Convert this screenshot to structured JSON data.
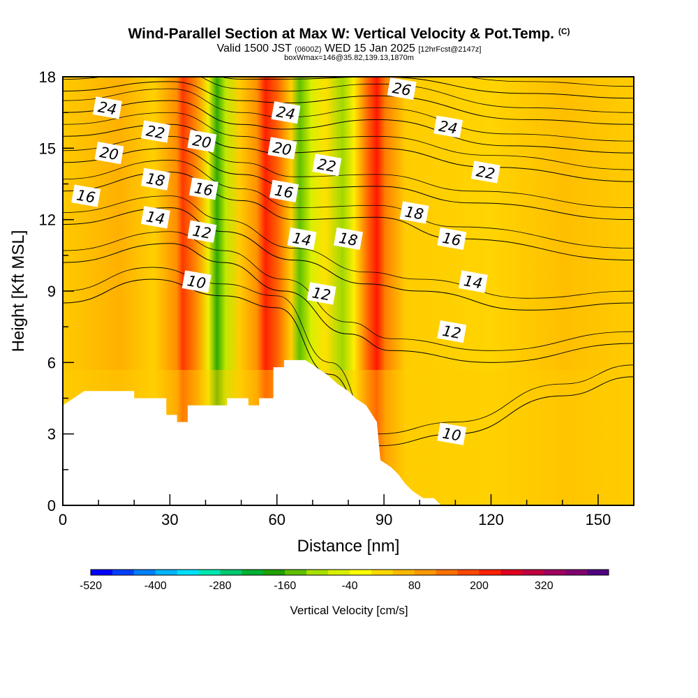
{
  "chart": {
    "title": "Wind-Parallel Section at Max W: Vertical Velocity & Pot.Temp.",
    "copyright": "(C)",
    "subtitle_a": "Valid 1500 JST",
    "subtitle_b": "(0600Z)",
    "subtitle_c": "WED 15 Jan 2025",
    "subtitle_d": "[12hrFcst@2147z]",
    "subtitle_line3": "boxWmax=146@35.82,139.13,1870m",
    "xlabel": "Distance [nm]",
    "ylabel": "Height [Kft MSL]",
    "colorbar_label": "Vertical Velocity [cm/s]"
  },
  "chart_data": {
    "type": "heatmap",
    "x_ticks": [
      "0",
      "30",
      "60",
      "90",
      "120",
      "150"
    ],
    "y_ticks": [
      "0",
      "3",
      "6",
      "9",
      "12",
      "15",
      "18"
    ],
    "xlim": [
      0,
      160
    ],
    "ylim": [
      0,
      18
    ],
    "colorbar": {
      "labels": [
        "-520",
        "-400",
        "-280",
        "-160",
        "-40",
        "80",
        "200",
        "320"
      ],
      "colors": [
        "#0000ff",
        "#0040ff",
        "#0080ff",
        "#00b4ff",
        "#00e0ff",
        "#00e8b0",
        "#00c870",
        "#00b030",
        "#20a000",
        "#60c000",
        "#a8e000",
        "#d8f000",
        "#ffff00",
        "#ffd800",
        "#ffb800",
        "#ff9800",
        "#ff7000",
        "#ff4800",
        "#ff2000",
        "#e00020",
        "#c00040",
        "#a00060",
        "#800070",
        "#500080"
      ]
    },
    "velocity_bands": [
      {
        "x_center": 33,
        "velocity": 120,
        "kind": "updraft"
      },
      {
        "x_center": 43,
        "velocity": -150,
        "kind": "downdraft"
      },
      {
        "x_center": 57,
        "velocity": 220,
        "kind": "updraft"
      },
      {
        "x_center": 67,
        "velocity": -140,
        "kind": "downdraft"
      },
      {
        "x_center": 78,
        "velocity": -80,
        "kind": "downdraft"
      },
      {
        "x_center": 88,
        "velocity": 230,
        "kind": "updraft"
      }
    ],
    "terrain_kft": [
      {
        "x": 0,
        "h": 4.2
      },
      {
        "x": 3,
        "h": 4.5
      },
      {
        "x": 6,
        "h": 4.8
      },
      {
        "x": 20,
        "h": 4.8
      },
      {
        "x": 20,
        "h": 4.5
      },
      {
        "x": 29,
        "h": 4.5
      },
      {
        "x": 29,
        "h": 3.8
      },
      {
        "x": 32,
        "h": 3.8
      },
      {
        "x": 32,
        "h": 3.5
      },
      {
        "x": 35,
        "h": 3.5
      },
      {
        "x": 35,
        "h": 4.2
      },
      {
        "x": 46,
        "h": 4.2
      },
      {
        "x": 46,
        "h": 4.5
      },
      {
        "x": 52,
        "h": 4.5
      },
      {
        "x": 52,
        "h": 4.2
      },
      {
        "x": 55,
        "h": 4.2
      },
      {
        "x": 55,
        "h": 4.5
      },
      {
        "x": 59,
        "h": 4.5
      },
      {
        "x": 59,
        "h": 5.8
      },
      {
        "x": 62,
        "h": 5.8
      },
      {
        "x": 62,
        "h": 6.1
      },
      {
        "x": 68,
        "h": 6.1
      },
      {
        "x": 71,
        "h": 5.8
      },
      {
        "x": 74,
        "h": 5.5
      },
      {
        "x": 77,
        "h": 5.1
      },
      {
        "x": 80,
        "h": 4.8
      },
      {
        "x": 82,
        "h": 4.5
      },
      {
        "x": 85,
        "h": 4.2
      },
      {
        "x": 88,
        "h": 3.5
      },
      {
        "x": 89,
        "h": 1.9
      },
      {
        "x": 92,
        "h": 1.6
      },
      {
        "x": 94,
        "h": 1.3
      },
      {
        "x": 96,
        "h": 0.9
      },
      {
        "x": 98,
        "h": 0.6
      },
      {
        "x": 101,
        "h": 0.3
      },
      {
        "x": 104,
        "h": 0.3
      },
      {
        "x": 106,
        "h": 0.0
      },
      {
        "x": 160,
        "h": 0.0
      }
    ],
    "isentropes": [
      {
        "label": "10",
        "points": [
          [
            0,
            8.5
          ],
          [
            25,
            9.5
          ],
          [
            45,
            8.8
          ],
          [
            60,
            8.3
          ],
          [
            75,
            5.5
          ],
          [
            88,
            2.5
          ],
          [
            110,
            3.0
          ],
          [
            140,
            4.6
          ],
          [
            160,
            5.4
          ]
        ]
      },
      {
        "label": "12",
        "points": [
          [
            0,
            10.2
          ],
          [
            30,
            11.0
          ],
          [
            45,
            10.2
          ],
          [
            62,
            9.0
          ],
          [
            80,
            7.2
          ],
          [
            92,
            6.5
          ],
          [
            120,
            6.0
          ],
          [
            160,
            6.8
          ]
        ]
      },
      {
        "label": "14",
        "points": [
          [
            0,
            11.8
          ],
          [
            30,
            12.5
          ],
          [
            45,
            11.5
          ],
          [
            65,
            10.3
          ],
          [
            85,
            9.3
          ],
          [
            100,
            9.0
          ],
          [
            130,
            8.2
          ],
          [
            160,
            8.5
          ]
        ]
      },
      {
        "label": "16",
        "points": [
          [
            0,
            13.2
          ],
          [
            30,
            14.0
          ],
          [
            50,
            12.8
          ],
          [
            65,
            12.0
          ],
          [
            88,
            12.1
          ],
          [
            110,
            11.2
          ],
          [
            160,
            10.3
          ]
        ]
      },
      {
        "label": "18",
        "points": [
          [
            0,
            14.4
          ],
          [
            30,
            15.0
          ],
          [
            50,
            13.9
          ],
          [
            65,
            13.3
          ],
          [
            88,
            13.4
          ],
          [
            115,
            12.7
          ],
          [
            160,
            12.0
          ]
        ]
      },
      {
        "label": "20",
        "points": [
          [
            0,
            15.5
          ],
          [
            30,
            16.0
          ],
          [
            50,
            15.0
          ],
          [
            60,
            14.8
          ],
          [
            88,
            15.0
          ],
          [
            120,
            14.2
          ],
          [
            160,
            13.6
          ]
        ]
      },
      {
        "label": "22",
        "points": [
          [
            0,
            16.5
          ],
          [
            30,
            17.0
          ],
          [
            50,
            16.0
          ],
          [
            62,
            15.8
          ],
          [
            88,
            16.2
          ],
          [
            125,
            15.1
          ],
          [
            160,
            14.8
          ]
        ]
      },
      {
        "label": "24",
        "points": [
          [
            0,
            17.4
          ],
          [
            30,
            17.8
          ],
          [
            50,
            17.0
          ],
          [
            62,
            16.9
          ],
          [
            88,
            17.2
          ],
          [
            130,
            16.2
          ],
          [
            160,
            16.0
          ]
        ]
      },
      {
        "label": "26",
        "points": [
          [
            0,
            18.2
          ],
          [
            30,
            18.6
          ],
          [
            50,
            17.9
          ],
          [
            62,
            17.9
          ],
          [
            88,
            18.0
          ],
          [
            130,
            17.3
          ],
          [
            160,
            17.1
          ]
        ]
      }
    ],
    "contour_labels": [
      {
        "text": "24",
        "x": 12.5,
        "y": 16.7
      },
      {
        "text": "22",
        "x": 26,
        "y": 15.7
      },
      {
        "text": "20",
        "x": 13,
        "y": 14.8
      },
      {
        "text": "20",
        "x": 39,
        "y": 15.3
      },
      {
        "text": "18",
        "x": 26,
        "y": 13.7
      },
      {
        "text": "16",
        "x": 6.5,
        "y": 13.0
      },
      {
        "text": "16",
        "x": 39.5,
        "y": 13.3
      },
      {
        "text": "14",
        "x": 26,
        "y": 12.1
      },
      {
        "text": "12",
        "x": 39,
        "y": 11.5
      },
      {
        "text": "10",
        "x": 37.5,
        "y": 9.4
      },
      {
        "text": "24",
        "x": 62.5,
        "y": 16.5
      },
      {
        "text": "20",
        "x": 61.5,
        "y": 15.0
      },
      {
        "text": "16",
        "x": 62,
        "y": 13.2
      },
      {
        "text": "22",
        "x": 74,
        "y": 14.3
      },
      {
        "text": "14",
        "x": 67,
        "y": 11.2
      },
      {
        "text": "12",
        "x": 72.5,
        "y": 8.9
      },
      {
        "text": "18",
        "x": 80,
        "y": 11.2
      },
      {
        "text": "26",
        "x": 95,
        "y": 17.5
      },
      {
        "text": "24",
        "x": 108,
        "y": 15.9
      },
      {
        "text": "22",
        "x": 118.5,
        "y": 14.0
      },
      {
        "text": "18",
        "x": 98.5,
        "y": 12.3
      },
      {
        "text": "16",
        "x": 109,
        "y": 11.2
      },
      {
        "text": "14",
        "x": 115,
        "y": 9.4
      },
      {
        "text": "12",
        "x": 109,
        "y": 7.3
      },
      {
        "text": "10",
        "x": 109,
        "y": 3.0
      }
    ]
  }
}
